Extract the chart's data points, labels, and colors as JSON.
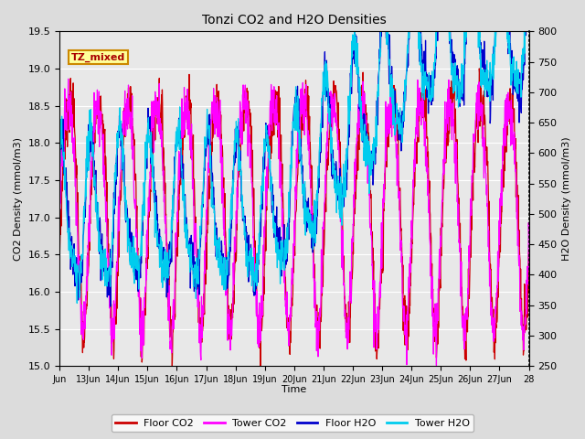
{
  "title": "Tonzi CO2 and H2O Densities",
  "xlabel": "Time",
  "ylabel_left": "CO2 Density (mmol/m3)",
  "ylabel_right": "H2O Density (mmol/m3)",
  "annotation_text": "TZ_mixed",
  "annotation_bg": "#FFFF99",
  "annotation_border": "#CC8800",
  "ylim_left": [
    15.0,
    19.5
  ],
  "ylim_right": [
    250,
    800
  ],
  "xtick_labels": [
    "Jun",
    "13Jun",
    "14Jun",
    "15Jun",
    "16Jun",
    "17Jun",
    "18Jun",
    "19Jun",
    "20Jun",
    "21Jun",
    "22Jun",
    "23Jun",
    "24Jun",
    "25Jun",
    "26Jun",
    "27Jun",
    "28"
  ],
  "bg_color": "#dcdcdc",
  "plot_bg": "#e8e8e8",
  "grid_color": "#ffffff",
  "colors": {
    "floor_co2": "#cc0000",
    "tower_co2": "#ff00ff",
    "floor_h2o": "#0000cc",
    "tower_h2o": "#00ccee"
  },
  "legend_labels": [
    "Floor CO2",
    "Tower CO2",
    "Floor H2O",
    "Tower H2O"
  ],
  "n_points": 1600
}
